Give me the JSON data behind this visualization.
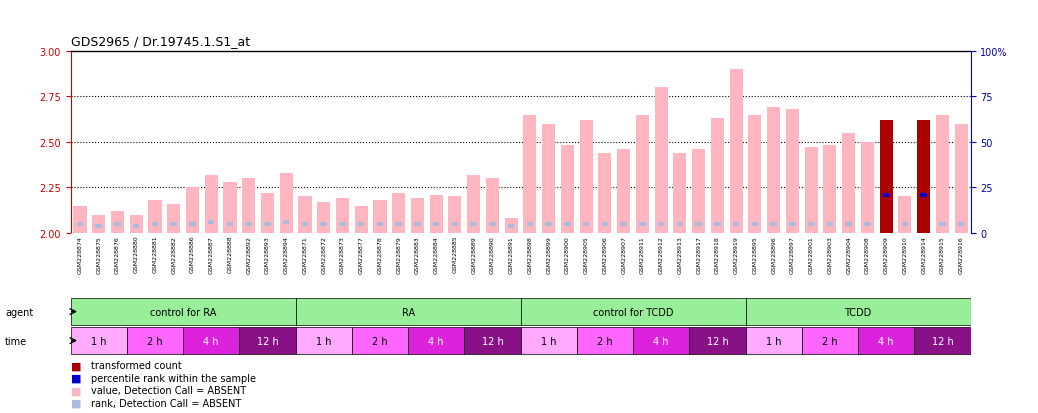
{
  "title": "GDS2965 / Dr.19745.1.S1_at",
  "samples": [
    "GSM228874",
    "GSM228875",
    "GSM228876",
    "GSM228880",
    "GSM228881",
    "GSM228882",
    "GSM228886",
    "GSM228887",
    "GSM228888",
    "GSM228892",
    "GSM228893",
    "GSM228894",
    "GSM228871",
    "GSM228872",
    "GSM228873",
    "GSM228877",
    "GSM228878",
    "GSM228879",
    "GSM228883",
    "GSM228884",
    "GSM228885",
    "GSM228889",
    "GSM228890",
    "GSM228891",
    "GSM228898",
    "GSM228899",
    "GSM228900",
    "GSM228905",
    "GSM228906",
    "GSM228907",
    "GSM228911",
    "GSM228912",
    "GSM228913",
    "GSM228917",
    "GSM228918",
    "GSM228919",
    "GSM228895",
    "GSM228896",
    "GSM228897",
    "GSM228901",
    "GSM228903",
    "GSM228904",
    "GSM228908",
    "GSM228909",
    "GSM228910",
    "GSM228914",
    "GSM228915",
    "GSM228916"
  ],
  "values": [
    2.15,
    2.1,
    2.12,
    2.1,
    2.18,
    2.16,
    2.25,
    2.32,
    2.28,
    2.3,
    2.22,
    2.33,
    2.2,
    2.17,
    2.19,
    2.15,
    2.18,
    2.22,
    2.19,
    2.21,
    2.2,
    2.32,
    2.3,
    2.08,
    2.65,
    2.6,
    2.48,
    2.62,
    2.44,
    2.46,
    2.65,
    2.8,
    2.44,
    2.46,
    2.63,
    2.9,
    2.65,
    2.69,
    2.68,
    2.47,
    2.48,
    2.55,
    2.5,
    2.62,
    2.2,
    2.62,
    2.65,
    2.6
  ],
  "ranks_pct": [
    5,
    4,
    5,
    4,
    5,
    5,
    5,
    6,
    5,
    5,
    5,
    6,
    5,
    5,
    5,
    5,
    5,
    5,
    5,
    5,
    5,
    5,
    5,
    4,
    5,
    5,
    5,
    5,
    5,
    5,
    5,
    5,
    5,
    5,
    5,
    5,
    5,
    5,
    5,
    5,
    5,
    5,
    5,
    21,
    5,
    21,
    5,
    5
  ],
  "detection_absent": [
    true,
    true,
    true,
    true,
    true,
    true,
    true,
    true,
    true,
    true,
    true,
    true,
    true,
    true,
    true,
    true,
    true,
    true,
    true,
    true,
    true,
    true,
    true,
    true,
    true,
    true,
    true,
    true,
    true,
    true,
    true,
    true,
    true,
    true,
    true,
    true,
    true,
    true,
    true,
    true,
    true,
    true,
    true,
    false,
    true,
    false,
    true,
    true
  ],
  "ylim_left": [
    2.0,
    3.0
  ],
  "ylim_right": [
    0,
    100
  ],
  "yticks_left": [
    2.0,
    2.25,
    2.5,
    2.75,
    3.0
  ],
  "yticks_right": [
    0,
    25,
    50,
    75,
    100
  ],
  "hlines": [
    2.25,
    2.5,
    2.75
  ],
  "agent_groups": [
    {
      "label": "control for RA",
      "start": 0,
      "end": 12
    },
    {
      "label": "RA",
      "start": 12,
      "end": 24
    },
    {
      "label": "control for TCDD",
      "start": 24,
      "end": 36
    },
    {
      "label": "TCDD",
      "start": 36,
      "end": 48
    }
  ],
  "time_groups": [
    {
      "label": "1 h",
      "start": 0,
      "end": 3,
      "shade": 0
    },
    {
      "label": "2 h",
      "start": 3,
      "end": 6,
      "shade": 1
    },
    {
      "label": "4 h",
      "start": 6,
      "end": 9,
      "shade": 2
    },
    {
      "label": "12 h",
      "start": 9,
      "end": 12,
      "shade": 3
    },
    {
      "label": "1 h",
      "start": 12,
      "end": 15,
      "shade": 0
    },
    {
      "label": "2 h",
      "start": 15,
      "end": 18,
      "shade": 1
    },
    {
      "label": "4 h",
      "start": 18,
      "end": 21,
      "shade": 2
    },
    {
      "label": "12 h",
      "start": 21,
      "end": 24,
      "shade": 3
    },
    {
      "label": "1 h",
      "start": 24,
      "end": 27,
      "shade": 0
    },
    {
      "label": "2 h",
      "start": 27,
      "end": 30,
      "shade": 1
    },
    {
      "label": "4 h",
      "start": 30,
      "end": 33,
      "shade": 2
    },
    {
      "label": "12 h",
      "start": 33,
      "end": 36,
      "shade": 3
    },
    {
      "label": "1 h",
      "start": 36,
      "end": 39,
      "shade": 0
    },
    {
      "label": "2 h",
      "start": 39,
      "end": 42,
      "shade": 1
    },
    {
      "label": "4 h",
      "start": 42,
      "end": 45,
      "shade": 2
    },
    {
      "label": "12 h",
      "start": 45,
      "end": 48,
      "shade": 3
    }
  ],
  "time_shades": [
    "#FFAAFF",
    "#FF66FF",
    "#DD22DD",
    "#881188"
  ],
  "agent_color": "#99EE99",
  "bar_color_absent": "#FFB6C1",
  "bar_color_present": "#AA0000",
  "rank_color_absent": "#AABBDD",
  "rank_color_present": "#0000CC",
  "left_axis_color": "#CC0000",
  "right_axis_color": "#0000BB",
  "bg_color": "#FFFFFF",
  "sample_bg_color": "#DDDDDD",
  "bar_width": 0.7,
  "sample_label_fontsize": 4.5,
  "legend_items": [
    {
      "color": "#AA0000",
      "label": "transformed count"
    },
    {
      "color": "#0000CC",
      "label": "percentile rank within the sample"
    },
    {
      "color": "#FFB6C1",
      "label": "value, Detection Call = ABSENT"
    },
    {
      "color": "#AABBDD",
      "label": "rank, Detection Call = ABSENT"
    }
  ]
}
